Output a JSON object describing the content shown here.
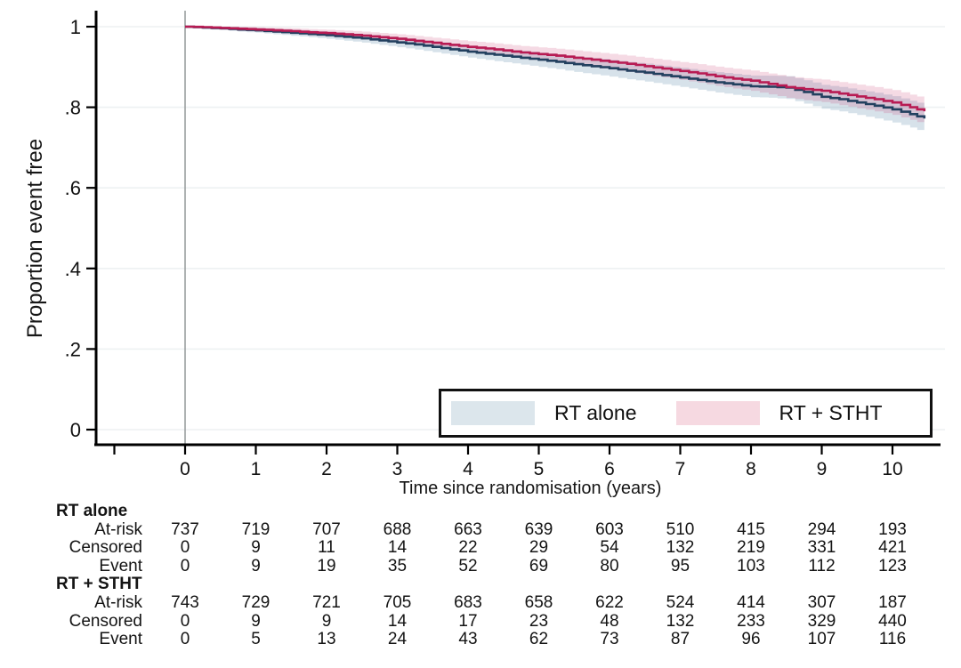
{
  "figure": {
    "background": "#ffffff"
  },
  "chart_data": {
    "type": "line",
    "subtype": "kaplan-meier-step",
    "title": "",
    "ylabel": "Proportion event free",
    "xlabel": "Time since randomisation (years)",
    "ylim": [
      0,
      1.02
    ],
    "xlim": [
      -1.25,
      10.75
    ],
    "grid": "horizontal-faint",
    "yticks": [
      {
        "v": 0,
        "label": "0"
      },
      {
        "v": 0.2,
        "label": ".2"
      },
      {
        "v": 0.4,
        "label": ".4"
      },
      {
        "v": 0.6,
        "label": ".6"
      },
      {
        "v": 0.8,
        "label": ".8"
      },
      {
        "v": 1,
        "label": "1"
      }
    ],
    "xticks": [
      {
        "v": -1,
        "label": ""
      },
      {
        "v": 0,
        "label": "0"
      },
      {
        "v": 1,
        "label": "1"
      },
      {
        "v": 2,
        "label": "2"
      },
      {
        "v": 3,
        "label": "3"
      },
      {
        "v": 4,
        "label": "4"
      },
      {
        "v": 5,
        "label": "5"
      },
      {
        "v": 6,
        "label": "6"
      },
      {
        "v": 7,
        "label": "7"
      },
      {
        "v": 8,
        "label": "8"
      },
      {
        "v": 9,
        "label": "9"
      },
      {
        "v": 10,
        "label": "10"
      }
    ],
    "zero_time_line": {
      "x": 0,
      "color": "#9a9e9e"
    },
    "legend": {
      "position": "bottom-right-inside",
      "entries": [
        {
          "label": "RT alone",
          "swatch_color": "#dce6ec"
        },
        {
          "label": "RT + STHT",
          "swatch_color": "#f6d9e1"
        }
      ]
    },
    "series": [
      {
        "name": "RT alone",
        "line_color": "#22405f",
        "band_color": "rgba(80,130,165,0.23)",
        "band_halfwidth_start": 0.003,
        "band_halfwidth_end": 0.034,
        "x": [
          0,
          0.25,
          0.5,
          0.75,
          1,
          1.25,
          1.5,
          1.75,
          2,
          2.25,
          2.5,
          2.75,
          3,
          3.25,
          3.5,
          3.75,
          4,
          4.25,
          4.5,
          4.75,
          5,
          5.25,
          5.5,
          5.75,
          6,
          6.25,
          6.5,
          6.75,
          7,
          7.25,
          7.5,
          7.75,
          8,
          8.25,
          8.5,
          8.75,
          9,
          9.25,
          9.5,
          9.75,
          10,
          10.25,
          10.45
        ],
        "y": [
          1.0,
          0.998,
          0.996,
          0.993,
          0.991,
          0.988,
          0.985,
          0.982,
          0.979,
          0.975,
          0.971,
          0.966,
          0.961,
          0.956,
          0.95,
          0.944,
          0.938,
          0.933,
          0.928,
          0.923,
          0.918,
          0.913,
          0.907,
          0.902,
          0.897,
          0.891,
          0.886,
          0.88,
          0.874,
          0.868,
          0.862,
          0.857,
          0.852,
          0.851,
          0.849,
          0.838,
          0.826,
          0.82,
          0.812,
          0.804,
          0.795,
          0.783,
          0.772
        ]
      },
      {
        "name": "RT + STHT",
        "line_color": "#b81b53",
        "band_color": "rgba(200,60,110,0.19)",
        "band_halfwidth_start": 0.003,
        "band_halfwidth_end": 0.032,
        "x": [
          0,
          0.25,
          0.5,
          0.75,
          1,
          1.25,
          1.5,
          1.75,
          2,
          2.25,
          2.5,
          2.75,
          3,
          3.25,
          3.5,
          3.75,
          4,
          4.25,
          4.5,
          4.75,
          5,
          5.25,
          5.5,
          5.75,
          6,
          6.25,
          6.5,
          6.75,
          7,
          7.25,
          7.5,
          7.75,
          8,
          8.25,
          8.5,
          8.75,
          9,
          9.25,
          9.5,
          9.75,
          10,
          10.25,
          10.45
        ],
        "y": [
          1.0,
          0.999,
          0.997,
          0.995,
          0.993,
          0.991,
          0.989,
          0.986,
          0.984,
          0.981,
          0.978,
          0.974,
          0.97,
          0.965,
          0.96,
          0.955,
          0.95,
          0.946,
          0.941,
          0.936,
          0.932,
          0.928,
          0.923,
          0.918,
          0.913,
          0.908,
          0.902,
          0.896,
          0.89,
          0.884,
          0.877,
          0.871,
          0.866,
          0.858,
          0.85,
          0.845,
          0.841,
          0.834,
          0.827,
          0.82,
          0.812,
          0.8,
          0.79
        ]
      }
    ]
  },
  "risk_table": {
    "groups": [
      {
        "name": "RT alone",
        "rows": [
          {
            "label": "At-risk",
            "values": [
              737,
              719,
              707,
              688,
              663,
              639,
              603,
              510,
              415,
              294,
              193
            ]
          },
          {
            "label": "Censored",
            "values": [
              0,
              9,
              11,
              14,
              22,
              29,
              54,
              132,
              219,
              331,
              421
            ]
          },
          {
            "label": "Event",
            "values": [
              0,
              9,
              19,
              35,
              52,
              69,
              80,
              95,
              103,
              112,
              123
            ]
          }
        ]
      },
      {
        "name": "RT + STHT",
        "rows": [
          {
            "label": "At-risk",
            "values": [
              743,
              729,
              721,
              705,
              683,
              658,
              622,
              524,
              414,
              307,
              187
            ]
          },
          {
            "label": "Censored",
            "values": [
              0,
              9,
              9,
              14,
              17,
              23,
              48,
              132,
              233,
              329,
              440
            ]
          },
          {
            "label": "Event",
            "values": [
              0,
              5,
              13,
              24,
              43,
              62,
              73,
              87,
              96,
              107,
              116
            ]
          }
        ]
      }
    ]
  }
}
